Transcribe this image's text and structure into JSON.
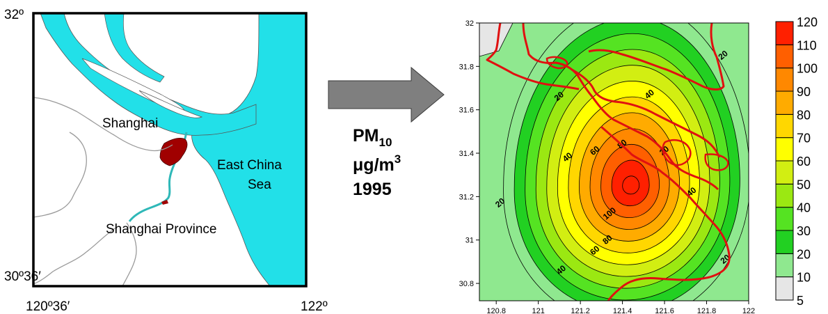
{
  "map": {
    "lat_top": "32º",
    "lat_bottom": "30º36′",
    "lon_left": "120º36′",
    "lon_right": "122º",
    "label_shanghai": "Shanghai",
    "label_sea_1": "East China",
    "label_sea_2": "Sea",
    "label_province": "Shanghai Province",
    "water_color": "#22e0e8",
    "city_color": "#a00000"
  },
  "arrow_caption": {
    "pm_main": "PM",
    "pm_sub": "10",
    "unit_main": "μg/m",
    "unit_sup": "3",
    "year": "1995"
  },
  "chart_data": {
    "type": "contour",
    "xlim": [
      120.72,
      122.0
    ],
    "ylim": [
      30.72,
      32.0
    ],
    "x_ticks": [
      "120.8",
      "121",
      "121.2",
      "121.4",
      "121.6",
      "121.8",
      "122"
    ],
    "x_tick_values": [
      120.8,
      121.0,
      121.2,
      121.4,
      121.6,
      121.8,
      122.0
    ],
    "y_ticks": [
      "30.8",
      "31",
      "31.2",
      "31.4",
      "31.6",
      "31.8",
      "32"
    ],
    "y_tick_values": [
      30.8,
      31.0,
      31.2,
      31.4,
      31.6,
      31.8,
      32.0
    ],
    "peak": {
      "x": 121.44,
      "y": 31.25,
      "value": 125
    },
    "levels": [
      10,
      20,
      30,
      40,
      50,
      60,
      70,
      80,
      90,
      100,
      110,
      120
    ],
    "contour_labels": [
      {
        "text": "20",
        "x": 121.88,
        "y": 31.85
      },
      {
        "text": "20",
        "x": 121.1,
        "y": 31.66
      },
      {
        "text": "40",
        "x": 121.53,
        "y": 31.67
      },
      {
        "text": "80",
        "x": 121.4,
        "y": 31.44
      },
      {
        "text": "60",
        "x": 121.27,
        "y": 31.41
      },
      {
        "text": "40",
        "x": 121.14,
        "y": 31.38
      },
      {
        "text": "20",
        "x": 121.6,
        "y": 31.41
      },
      {
        "text": "40",
        "x": 121.73,
        "y": 31.22
      },
      {
        "text": "20",
        "x": 120.82,
        "y": 31.17
      },
      {
        "text": "100",
        "x": 121.34,
        "y": 31.12
      },
      {
        "text": "80",
        "x": 121.33,
        "y": 31.0
      },
      {
        "text": "60",
        "x": 121.27,
        "y": 30.95
      },
      {
        "text": "40",
        "x": 121.11,
        "y": 30.86
      },
      {
        "text": "20",
        "x": 121.89,
        "y": 30.91
      }
    ],
    "colorbar": {
      "labels": [
        "5",
        "10",
        "20",
        "30",
        "40",
        "50",
        "60",
        "70",
        "80",
        "90",
        "100",
        "110",
        "120"
      ],
      "colors": [
        "#e6e6e6",
        "#8fe88f",
        "#22d022",
        "#55e322",
        "#9be812",
        "#d2ee12",
        "#ffff00",
        "#ffd700",
        "#ffab00",
        "#ff8800",
        "#ff5f00",
        "#ff2000"
      ]
    },
    "overlay_color": "#e01010"
  }
}
